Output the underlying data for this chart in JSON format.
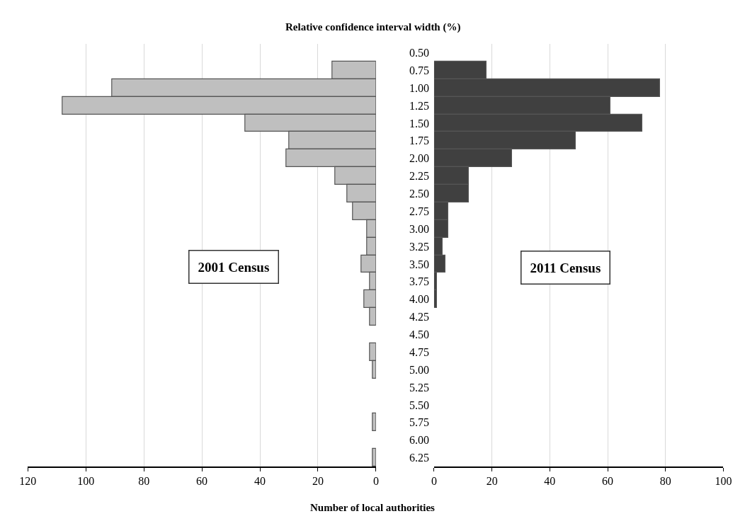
{
  "chart_data": [
    {
      "type": "bar",
      "orientation": "horizontal",
      "categories": [
        "0.50",
        "0.75",
        "1.00",
        "1.25",
        "1.50",
        "1.75",
        "2.00",
        "2.25",
        "2.50",
        "2.75",
        "3.00",
        "3.25",
        "3.50",
        "3.75",
        "4.00",
        "4.25",
        "4.50",
        "4.75",
        "5.00",
        "5.25",
        "5.50",
        "5.75",
        "6.00",
        "6.25"
      ],
      "values": [
        0,
        15,
        91,
        108,
        45,
        30,
        31,
        14,
        10,
        8,
        3,
        3,
        5,
        2,
        4,
        2,
        0,
        2,
        1,
        0,
        0,
        1,
        0,
        1
      ],
      "color": "#bfbfbf",
      "title": "Relative confidence interval width (%)",
      "xlim": [
        120,
        0
      ],
      "xticks": [
        120,
        100,
        80,
        60,
        40,
        20,
        0
      ],
      "xlabel": "Number of local authorities",
      "grid": "x",
      "tick_labels": "x",
      "annotations": [
        "2001 Census"
      ]
    },
    {
      "type": "bar",
      "orientation": "horizontal",
      "categories": [
        "0.50",
        "0.75",
        "1.00",
        "1.25",
        "1.50",
        "1.75",
        "2.00",
        "2.25",
        "2.50",
        "2.75",
        "3.00",
        "3.25",
        "3.50",
        "3.75",
        "4.00",
        "4.25",
        "4.50",
        "4.75",
        "5.00",
        "5.25",
        "5.50",
        "5.75",
        "6.00",
        "6.25"
      ],
      "values": [
        0,
        18,
        78,
        61,
        72,
        49,
        27,
        12,
        12,
        5,
        5,
        3,
        4,
        1,
        1,
        0,
        0,
        0,
        0,
        0,
        0,
        0,
        0,
        0
      ],
      "color": "#404040",
      "xlim": [
        0,
        100
      ],
      "xticks": [
        0,
        20,
        40,
        60,
        80,
        100
      ],
      "grid": "x",
      "annotations": [
        "2011 Census"
      ]
    }
  ]
}
